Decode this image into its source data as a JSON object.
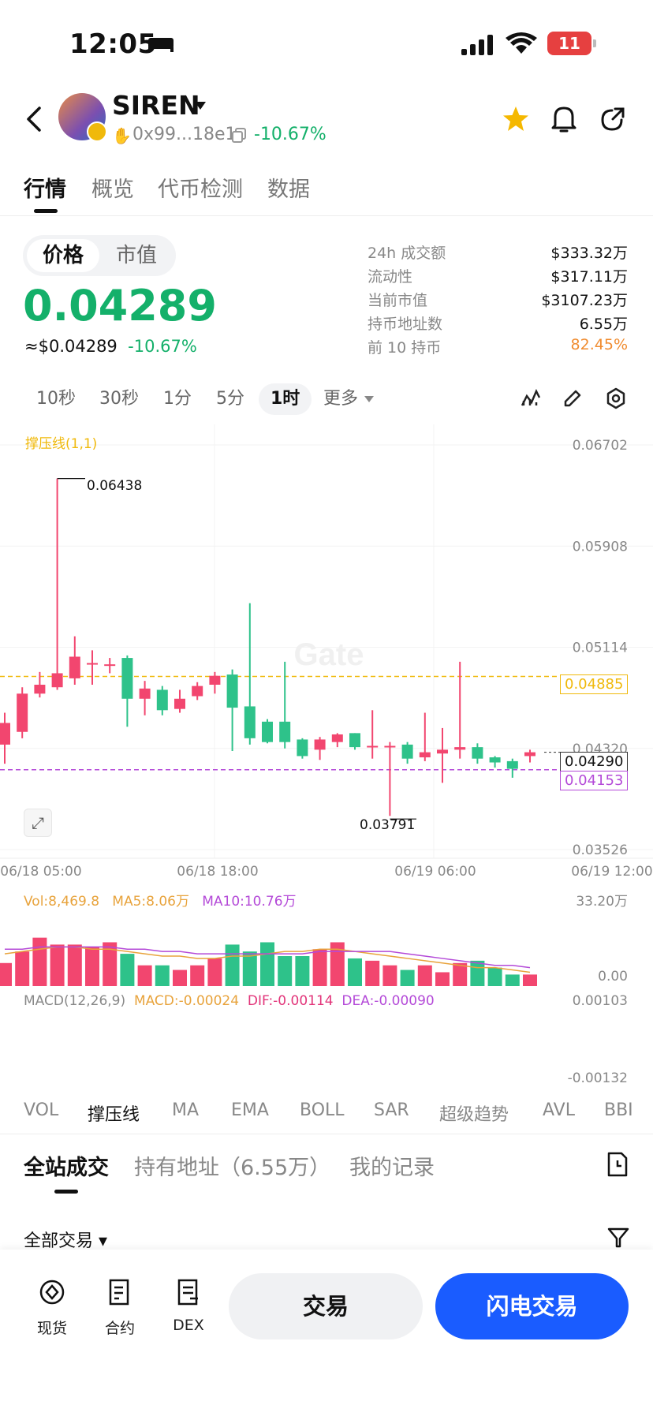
{
  "status_bar": {
    "time": "12:05",
    "battery": "11"
  },
  "header": {
    "token_name": "SIREN",
    "address": "0x99...18e1",
    "change_pct": "-10.67%"
  },
  "main_tabs": [
    "行情",
    "概览",
    "代币检测",
    "数据"
  ],
  "price_toggle": {
    "price": "价格",
    "market_cap": "市值"
  },
  "price": {
    "value": "0.04289",
    "usd": "≈$0.04289",
    "change": "-10.67%"
  },
  "stats": [
    {
      "label": "24h 成交额",
      "value": "$333.32万"
    },
    {
      "label": "流动性",
      "value": "$317.11万"
    },
    {
      "label": "当前市值",
      "value": "$3107.23万"
    },
    {
      "label": "持币地址数",
      "value": "6.55万"
    },
    {
      "label": "前 10 持币",
      "value": "82.45%"
    }
  ],
  "intervals": [
    "10秒",
    "30秒",
    "1分",
    "5分",
    "1时",
    "更多"
  ],
  "chart": {
    "indicator_label": "撑压线(1,1)",
    "y_ticks": [
      "0.06702",
      "0.05908",
      "0.05114",
      "0.04320",
      "0.03526"
    ],
    "x_ticks": [
      "06/18 05:00",
      "06/18 18:00",
      "06/19 06:00",
      "06/19 12:00"
    ],
    "high_label": "0.06438",
    "low_label": "0.03791",
    "resistance": "0.04885",
    "current": "0.04290",
    "support": "0.04153",
    "watermark": "Gate",
    "vol_label": "Vol:8,469.8",
    "ma5_label": "MA5:8.06万",
    "ma10_label": "MA10:10.76万",
    "vol_max": "33.20万",
    "vol_min": "0.00",
    "macd_label": "MACD(12,26,9)",
    "macd_val": "MACD:-0.00024",
    "dif_val": "DIF:-0.00114",
    "dea_val": "DEA:-0.00090",
    "macd_max": "0.00103",
    "macd_min": "-0.00132",
    "colors": {
      "up": "#f2466f",
      "down": "#2ec28a",
      "resist": "#f0b90b",
      "support": "#b44ad8",
      "ma5": "#e8a33c",
      "ma10": "#b44ad8"
    }
  },
  "indicators": [
    "VOL",
    "撑压线",
    "MA",
    "EMA",
    "BOLL",
    "SAR",
    "超级趋势",
    "AVL",
    "BBI"
  ],
  "section_tabs": [
    "全站成交",
    "持有地址（6.55万）",
    "我的记录"
  ],
  "filter": "全部交易",
  "bottom_nav": {
    "spot": "现货",
    "futures": "合约",
    "dex": "DEX",
    "trade": "交易",
    "flash": "闪电交易"
  }
}
